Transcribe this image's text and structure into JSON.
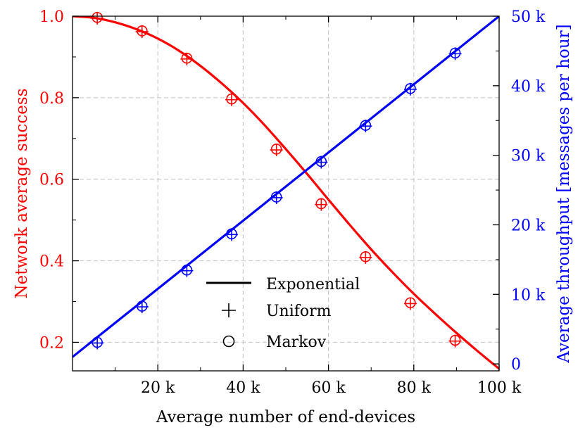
{
  "chart_data": {
    "type": "line",
    "xlabel": "Average number of end-devices",
    "ylabel_left": "Network average success",
    "ylabel_right": "Average throughput [messages per hour]",
    "xlim": [
      0,
      100000
    ],
    "ylim_left": [
      0.13,
      1.0
    ],
    "ylim_right": [
      -1000,
      50000
    ],
    "grid": true,
    "legend_position": "bottom-center",
    "x_ticks": [
      {
        "value": 20000,
        "label": "20 k"
      },
      {
        "value": 40000,
        "label": "40 k"
      },
      {
        "value": 60000,
        "label": "60 k"
      },
      {
        "value": 80000,
        "label": "80 k"
      },
      {
        "value": 100000,
        "label": "100 k"
      }
    ],
    "y_ticks_left": [
      {
        "value": 0.2,
        "label": "0.2"
      },
      {
        "value": 0.4,
        "label": "0.4"
      },
      {
        "value": 0.6,
        "label": "0.6"
      },
      {
        "value": 0.8,
        "label": "0.8"
      },
      {
        "value": 1.0,
        "label": "1.0"
      }
    ],
    "y_ticks_right": [
      {
        "value": 0,
        "label": "0"
      },
      {
        "value": 10000,
        "label": "10 k"
      },
      {
        "value": 20000,
        "label": "20 k"
      },
      {
        "value": 30000,
        "label": "30 k"
      },
      {
        "value": 40000,
        "label": "40 k"
      },
      {
        "value": 50000,
        "label": "50 k"
      }
    ],
    "legend": [
      {
        "label": "Exponential",
        "marker": "line"
      },
      {
        "label": "Uniform",
        "marker": "plus"
      },
      {
        "label": "Markov",
        "marker": "circle"
      }
    ],
    "colors": {
      "success": "#ff0000",
      "throughput": "#0000ff",
      "axis": "#000000",
      "grid": "#cccccc"
    },
    "series": [
      {
        "name": "Network average success",
        "axis": "left",
        "color": "#ff0000",
        "curve_x": [
          0,
          5000,
          10000,
          15000,
          20000,
          25000,
          30000,
          35000,
          40000,
          45000,
          50000,
          55000,
          60000,
          65000,
          70000,
          75000,
          80000,
          85000,
          90000,
          95000,
          100000
        ],
        "curve_y": [
          1.0,
          0.996,
          0.985,
          0.968,
          0.945,
          0.915,
          0.878,
          0.835,
          0.787,
          0.733,
          0.674,
          0.613,
          0.55,
          0.488,
          0.428,
          0.372,
          0.319,
          0.27,
          0.223,
          0.178,
          0.135
        ],
        "uniform_x": [
          5800,
          16300,
          26800,
          37300,
          47800,
          58300,
          68700,
          79200,
          89700
        ],
        "uniform_y": [
          0.995,
          0.962,
          0.895,
          0.795,
          0.672,
          0.538,
          0.408,
          0.295,
          0.203
        ],
        "markov_x": [
          5800,
          16300,
          26800,
          37300,
          47800,
          58300,
          68700,
          79200,
          89700
        ],
        "markov_y": [
          0.997,
          0.964,
          0.897,
          0.797,
          0.674,
          0.54,
          0.41,
          0.297,
          0.205
        ]
      },
      {
        "name": "Average throughput",
        "axis": "right",
        "color": "#0000ff",
        "curve_x": [
          0,
          100000
        ],
        "curve_y": [
          1000,
          50000
        ],
        "uniform_x": [
          5800,
          16300,
          26800,
          37300,
          47800,
          58300,
          68700,
          79200,
          89700
        ],
        "uniform_y": [
          3000,
          8200,
          13400,
          18600,
          23900,
          29000,
          34200,
          39500,
          44600
        ],
        "markov_x": [
          5800,
          16300,
          26800,
          37300,
          47800,
          58300,
          68700,
          79200,
          89700
        ],
        "markov_y": [
          3100,
          8300,
          13500,
          18700,
          24000,
          29100,
          34300,
          39600,
          44700
        ]
      }
    ]
  }
}
